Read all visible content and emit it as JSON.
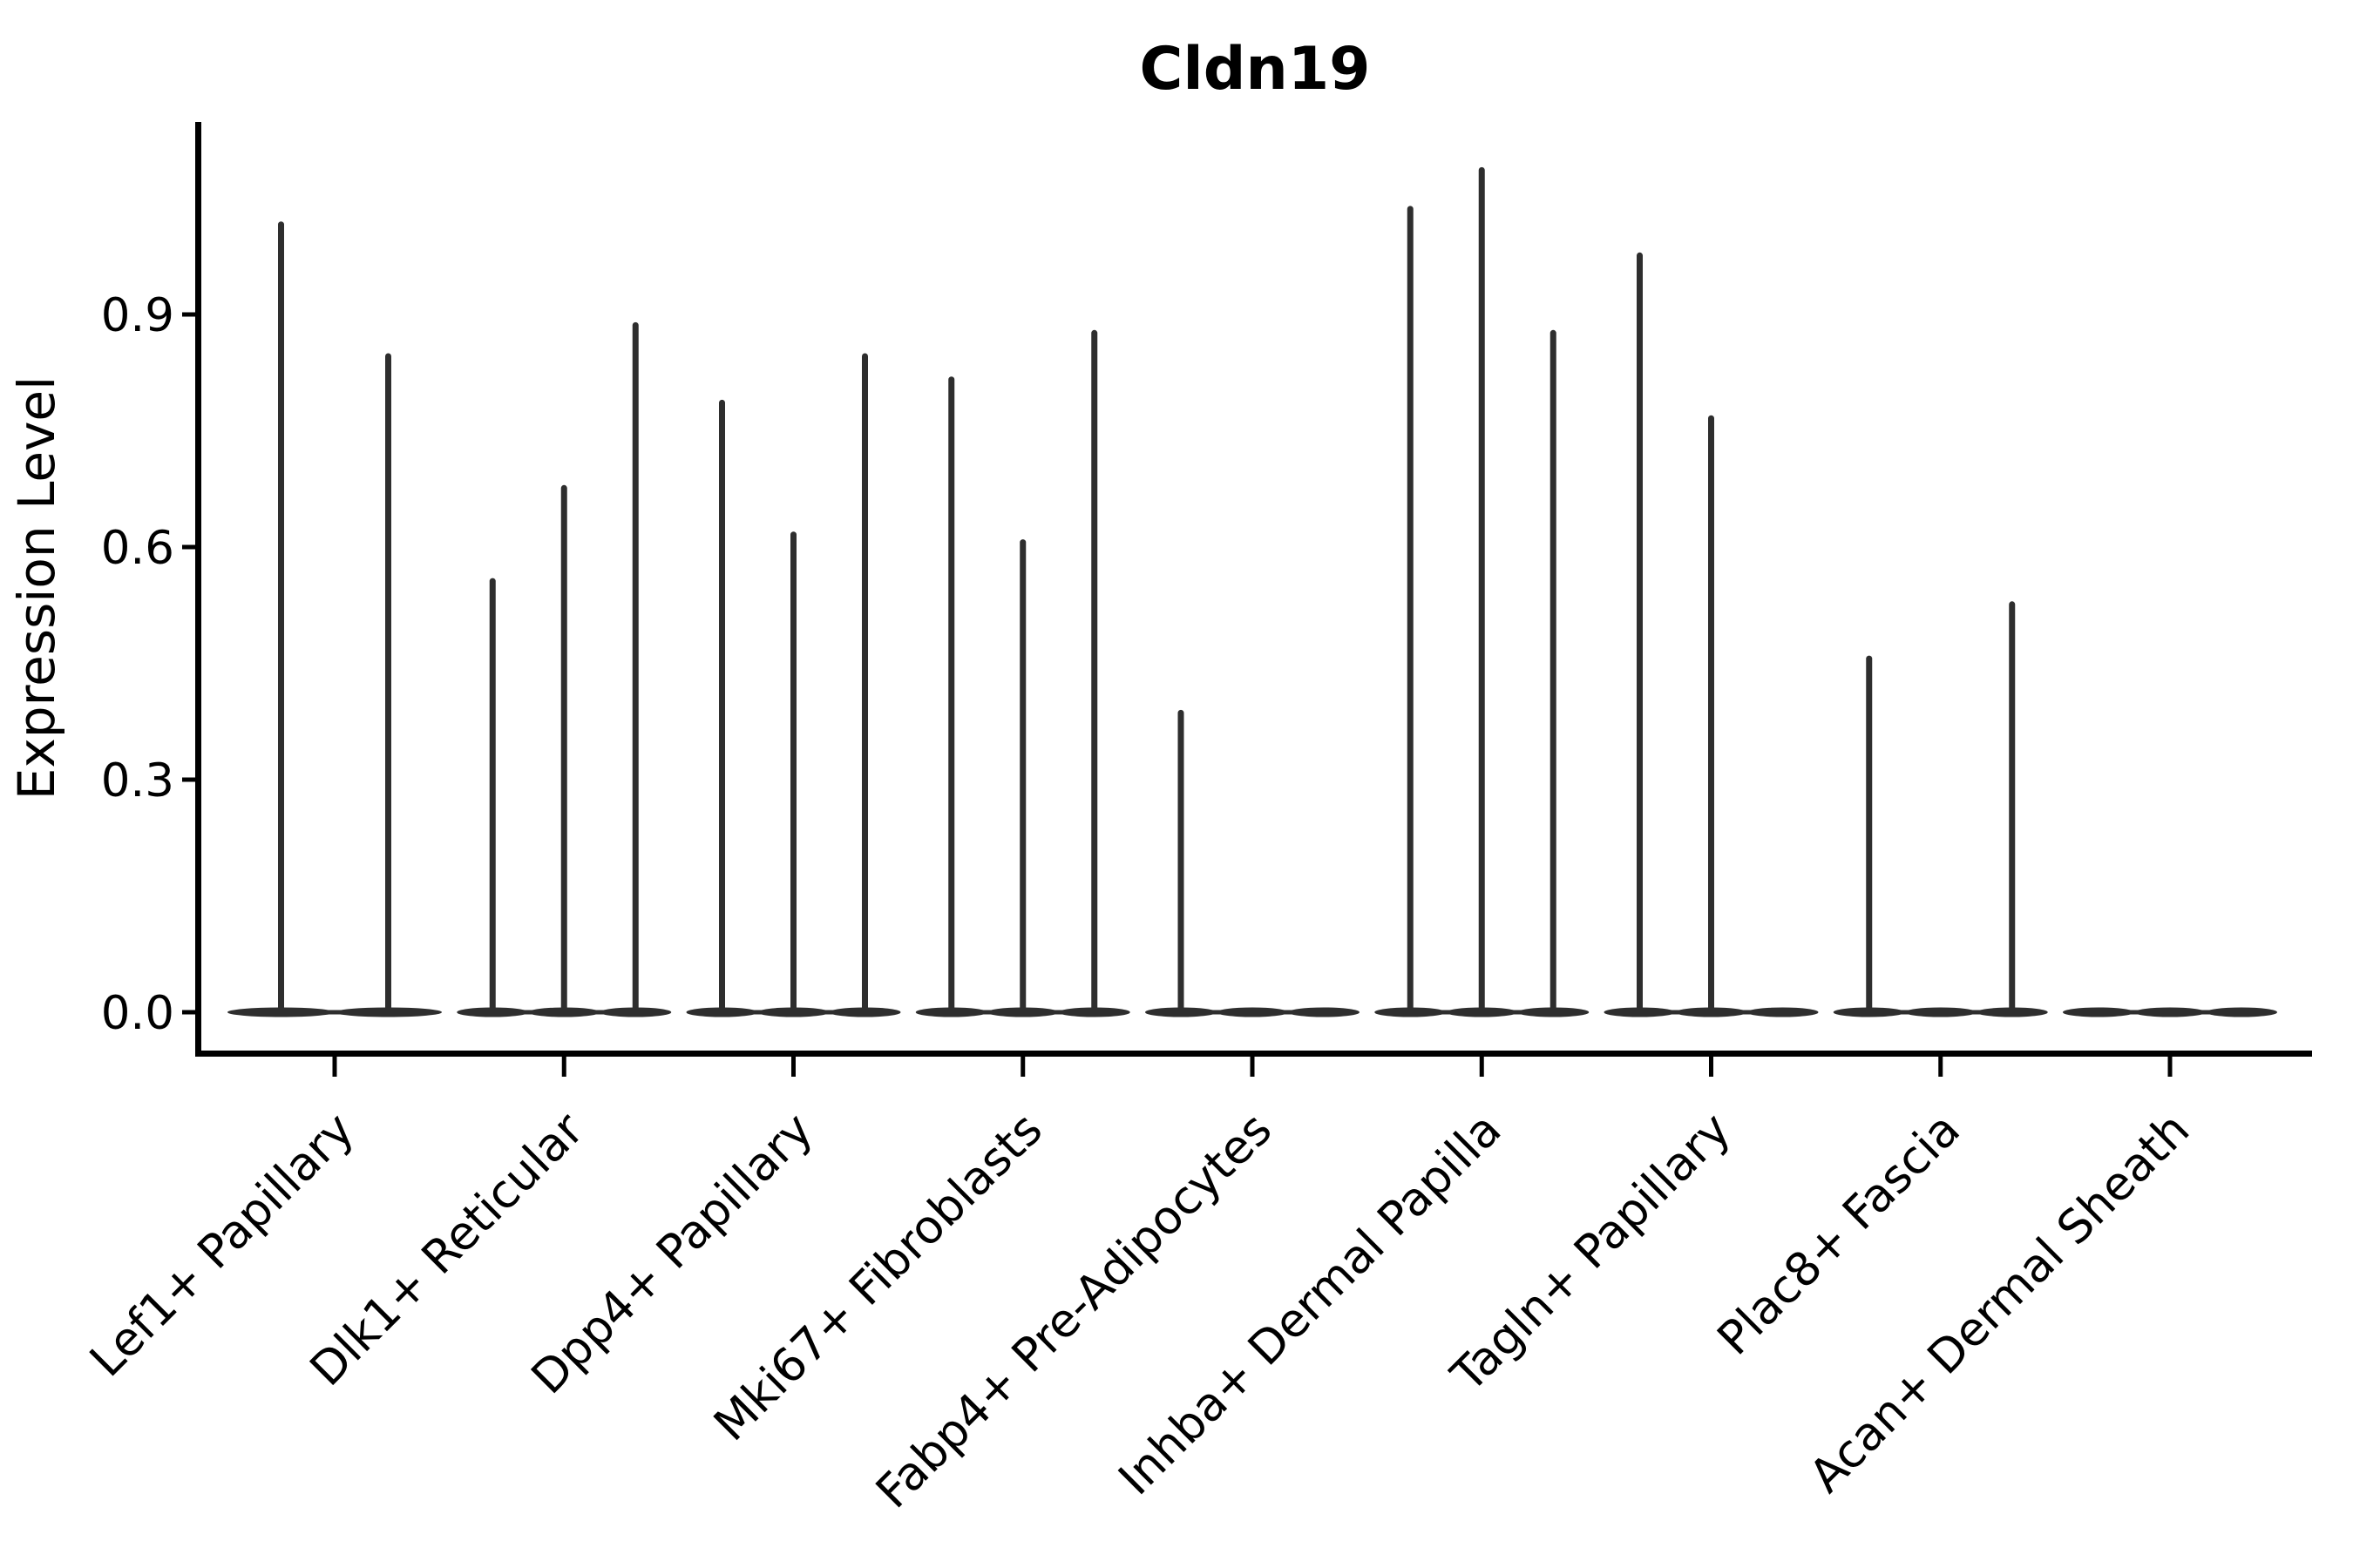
{
  "figure": {
    "title": "Cldn19",
    "background": "#ffffff"
  },
  "colors": {
    "violin_fill": "#2e2e2e",
    "axis": "#000000",
    "text": "#000000"
  },
  "chart_data": {
    "type": "violin",
    "title": "Cldn19",
    "xlabel": "",
    "ylabel": "Expression Level",
    "ylim": [
      0,
      1.15
    ],
    "yticks": [
      0,
      0.3,
      0.6,
      0.9
    ],
    "ytick_labels": [
      "0.0",
      "0.3",
      "0.6",
      "0.9"
    ],
    "grid": false,
    "legend_position": "none",
    "x_tick_rotation": 45,
    "violin_style": "collapsed-spike (flat base at 0 with thin spike to distribution max)",
    "categories": [
      "Lef1+ Papillary",
      "Dlk1+ Reticular",
      "Dpp4+ Papillary",
      "Mki67+ Fibroblasts",
      "Fabp4+ Pre-Adipocytes",
      "Inhba+ Dermal Papilla",
      "Tagln+ Papillary",
      "Plac8+ Fascia",
      "Acan+ Dermal Sheath"
    ],
    "series": [
      {
        "category": "Lef1+ Papillary",
        "violin_maxima": [
          1.02,
          0.85
        ]
      },
      {
        "category": "Dlk1+ Reticular",
        "violin_maxima": [
          0.56,
          0.68,
          0.89
        ]
      },
      {
        "category": "Dpp4+ Papillary",
        "violin_maxima": [
          0.79,
          0.62,
          0.85
        ]
      },
      {
        "category": "Mki67+ Fibroblasts",
        "violin_maxima": [
          0.82,
          0.61,
          0.88
        ]
      },
      {
        "category": "Fabp4+ Pre-Adipocytes",
        "violin_maxima": [
          0.39,
          0,
          0
        ]
      },
      {
        "category": "Inhba+ Dermal Papilla",
        "violin_maxima": [
          1.04,
          1.09,
          0.88
        ]
      },
      {
        "category": "Tagln+ Papillary",
        "violin_maxima": [
          0.98,
          0.77,
          0
        ]
      },
      {
        "category": "Plac8+ Fascia",
        "violin_maxima": [
          0.46,
          0,
          0.53
        ]
      },
      {
        "category": "Acan+ Dermal Sheath",
        "violin_maxima": [
          0,
          0,
          0
        ]
      }
    ]
  }
}
